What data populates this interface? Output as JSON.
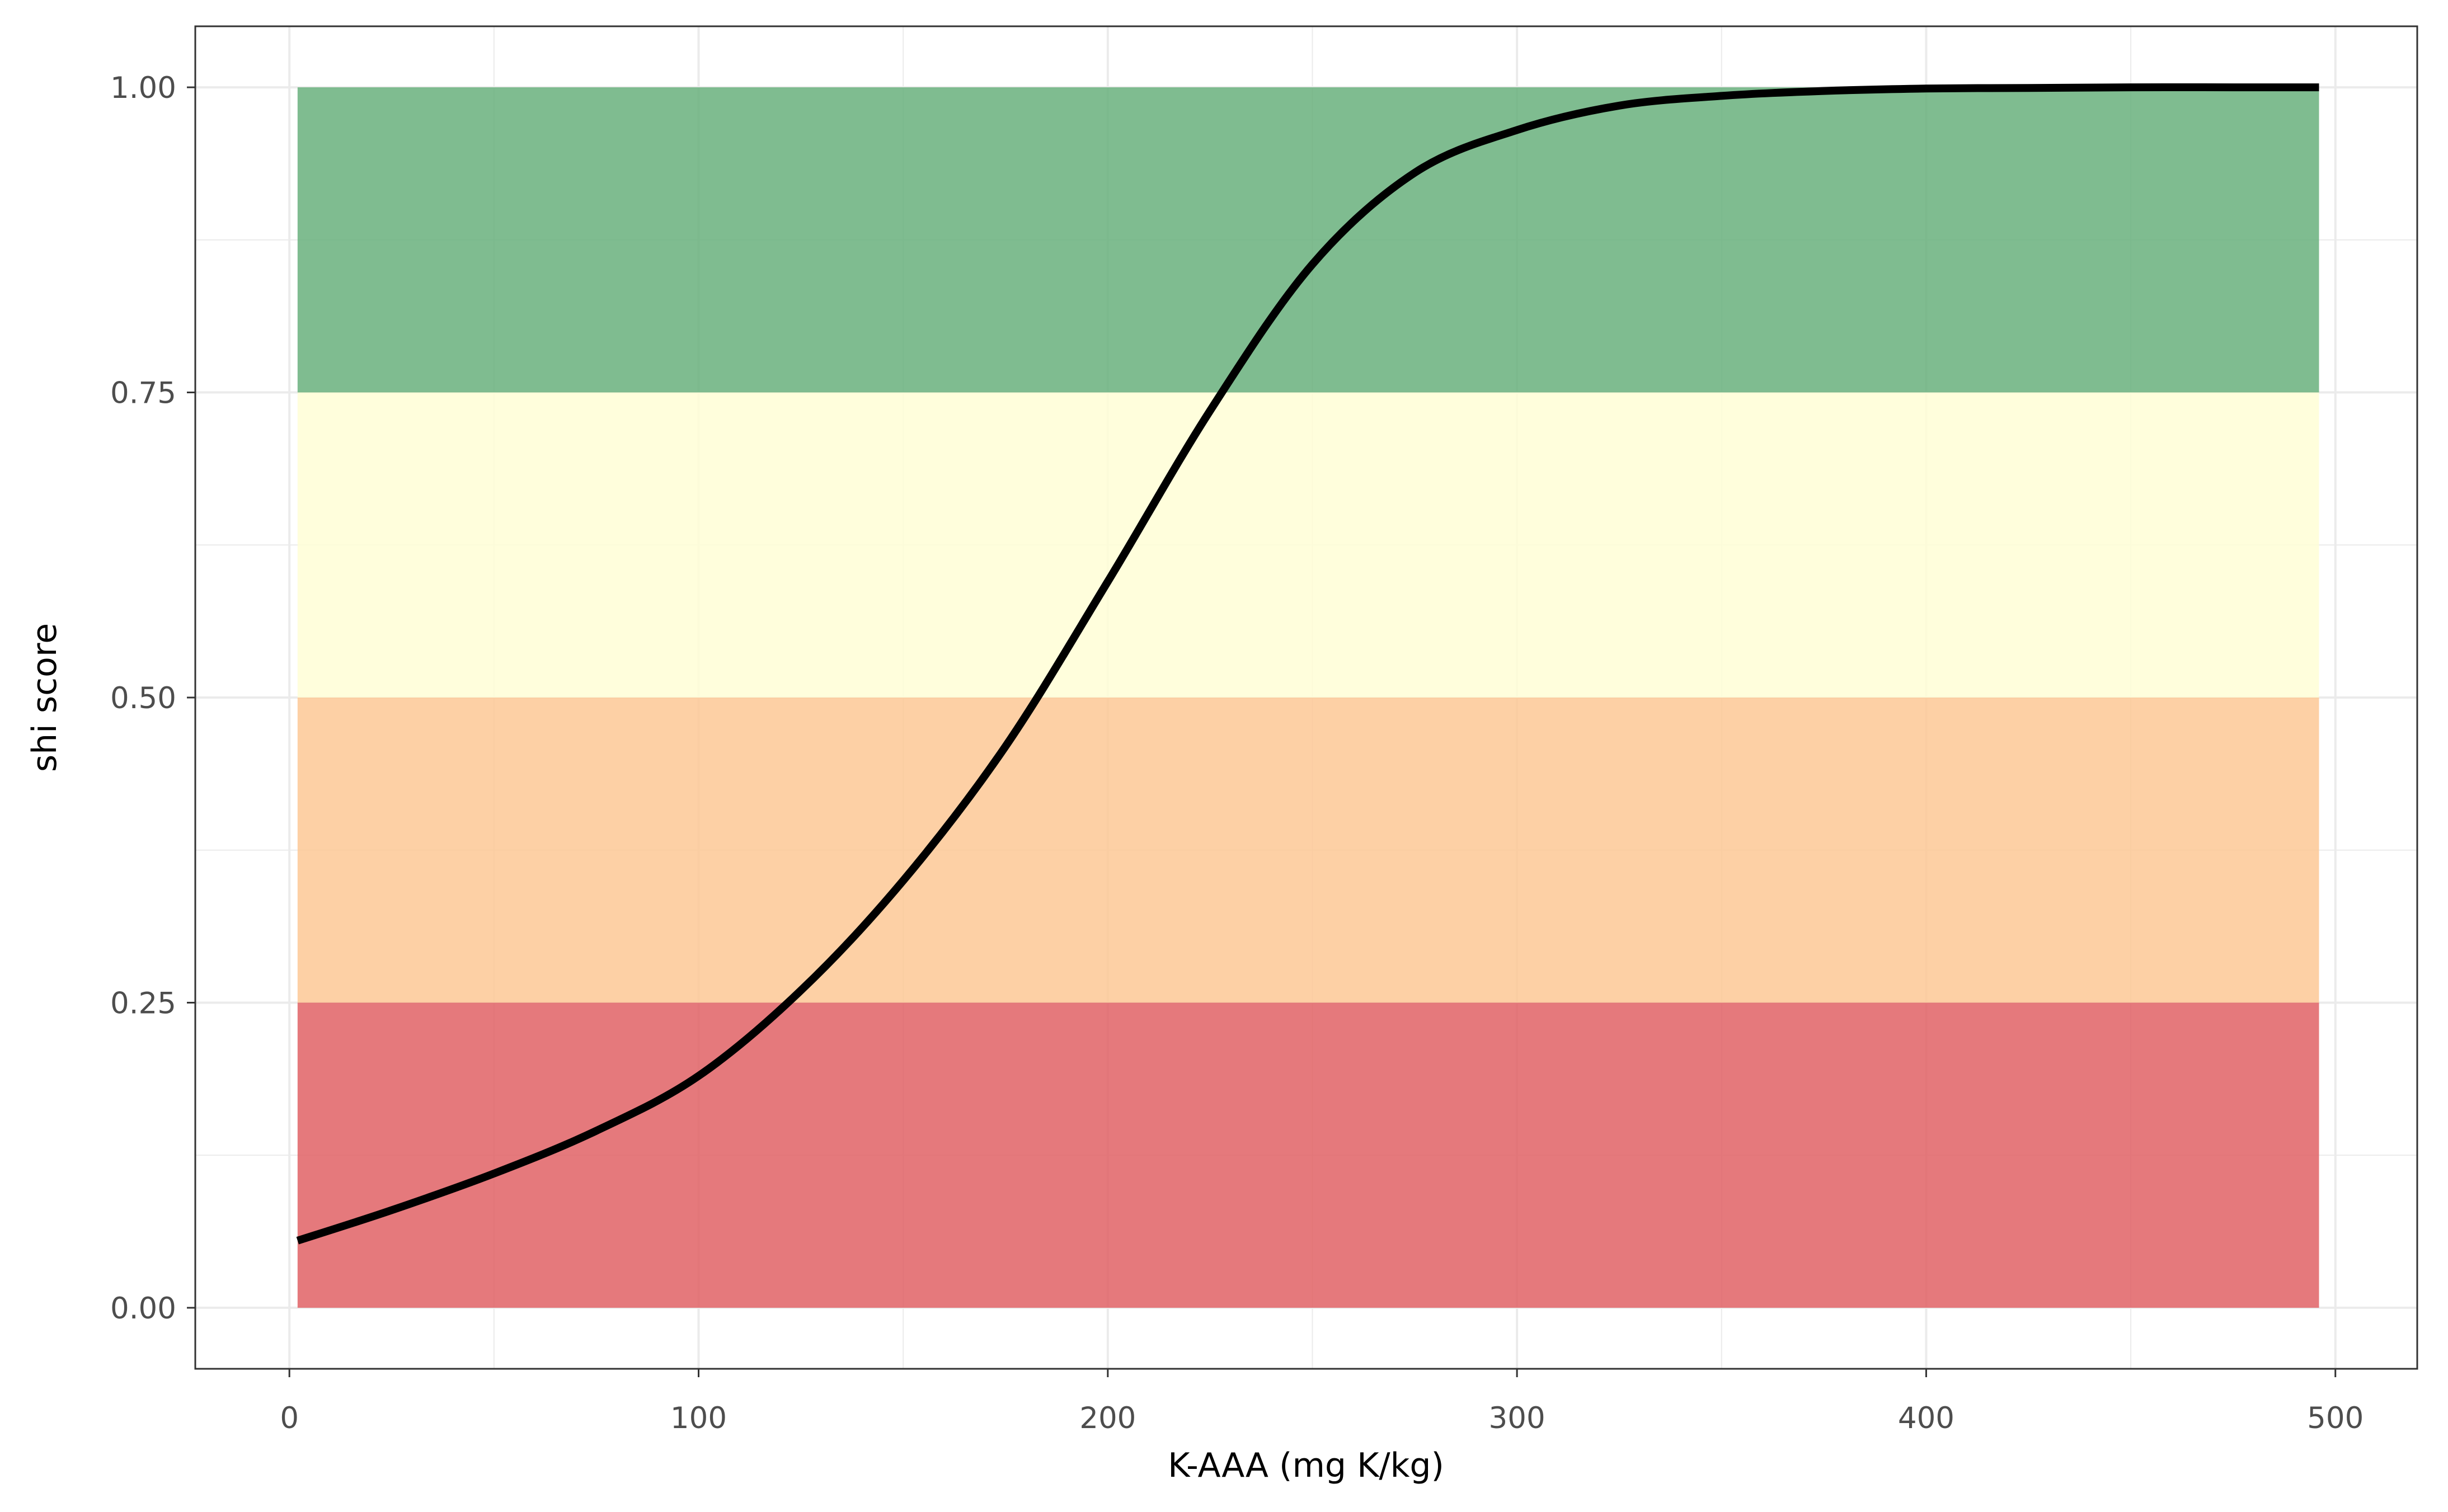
{
  "chart_data": {
    "type": "line",
    "title": "",
    "xlabel": "K-AAA (mg K/kg)",
    "ylabel": "shi score",
    "xlim": [
      -23,
      520
    ],
    "ylim": [
      -0.05,
      1.05
    ],
    "x_ticks": [
      0,
      100,
      200,
      300,
      400,
      500
    ],
    "x_tick_labels": [
      "0",
      "100",
      "200",
      "300",
      "400",
      "500"
    ],
    "y_ticks": [
      0,
      0.25,
      0.5,
      0.75,
      1
    ],
    "y_tick_labels": [
      "0.00",
      "0.25",
      "0.50",
      "0.75",
      "1.00"
    ],
    "grid": true,
    "legend": "none",
    "bands": [
      {
        "ymin": 0.0,
        "ymax": 0.25,
        "xmin": 2,
        "xmax": 496,
        "color": "#e06165"
      },
      {
        "ymin": 0.25,
        "ymax": 0.5,
        "xmin": 2,
        "xmax": 496,
        "color": "#fdc895"
      },
      {
        "ymin": 0.5,
        "ymax": 0.75,
        "xmin": 2,
        "xmax": 496,
        "color": "#fffed6"
      },
      {
        "ymin": 0.75,
        "ymax": 1.0,
        "xmin": 2,
        "xmax": 496,
        "color": "#68b07d"
      }
    ],
    "series": [
      {
        "color": "#000000",
        "x": [
          2,
          25,
          50,
          75,
          100,
          125,
          150,
          175,
          200,
          225,
          250,
          275,
          300,
          325,
          350,
          375,
          400,
          425,
          450,
          475,
          496
        ],
        "y": [
          0.055,
          0.08,
          0.11,
          0.145,
          0.19,
          0.26,
          0.35,
          0.46,
          0.595,
          0.735,
          0.855,
          0.93,
          0.965,
          0.985,
          0.993,
          0.997,
          0.999,
          0.9995,
          1.0,
          1.0,
          1.0
        ]
      }
    ]
  }
}
